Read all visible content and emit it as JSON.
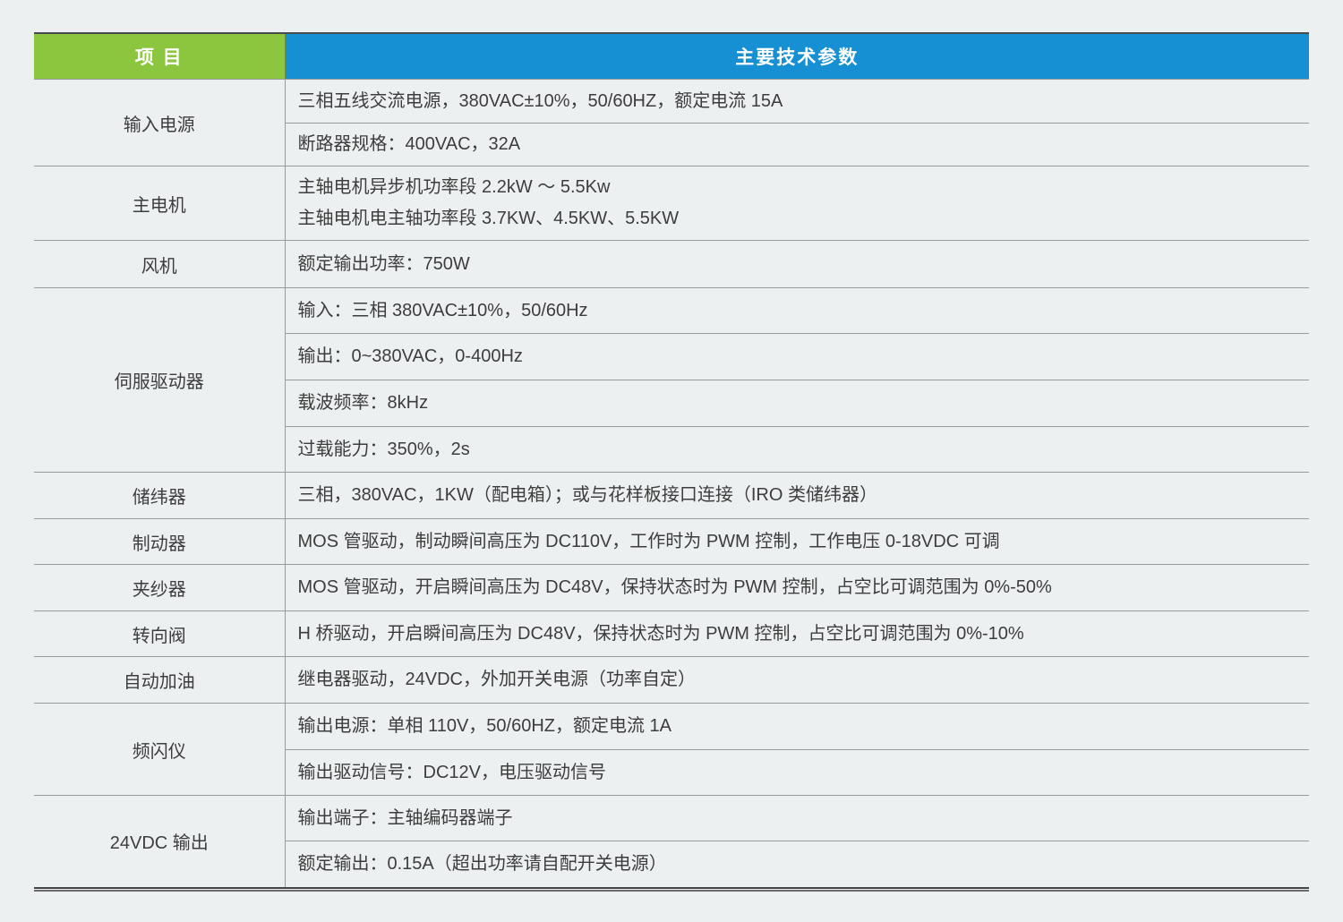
{
  "colors": {
    "item_header_green": "#8cc63e",
    "param_header_blue": "#1690d2",
    "grid_line": "#979b9d",
    "background": "#edf0f1"
  },
  "table": {
    "header": {
      "item_col": "项 目",
      "param_col": "主要技术参数"
    },
    "groups": [
      {
        "item": "输入电源",
        "specs": [
          "三相五线交流电源，380VAC±10%，50/60HZ，额定电流 15A",
          "断路器规格：400VAC，32A"
        ]
      },
      {
        "item": "主电机",
        "specs": [
          "主轴电机异步机功率段 2.2kW ～ 5.5Kw\n主轴电机电主轴功率段 3.7KW、4.5KW、5.5KW"
        ]
      },
      {
        "item": "风机",
        "specs": [
          "额定输出功率：750W"
        ]
      },
      {
        "item": "伺服驱动器",
        "specs": [
          "输入：三相 380VAC±10%，50/60Hz",
          "输出：0~380VAC，0-400Hz",
          "载波频率：8kHz",
          "过载能力：350%，2s"
        ]
      },
      {
        "item": "储纬器",
        "specs": [
          "三相，380VAC，1KW（配电箱）；或与花样板接口连接（IRO 类储纬器）"
        ]
      },
      {
        "item": "制动器",
        "specs": [
          "MOS 管驱动，制动瞬间高压为 DC110V，工作时为 PWM 控制，工作电压 0-18VDC 可调"
        ]
      },
      {
        "item": "夹纱器",
        "specs": [
          "MOS 管驱动，开启瞬间高压为 DC48V，保持状态时为 PWM 控制，占空比可调范围为 0%-50%"
        ]
      },
      {
        "item": "转向阀",
        "specs": [
          "H 桥驱动，开启瞬间高压为 DC48V，保持状态时为 PWM 控制，占空比可调范围为 0%-10%"
        ]
      },
      {
        "item": "自动加油",
        "specs": [
          "继电器驱动，24VDC，外加开关电源（功率自定）"
        ]
      },
      {
        "item": "频闪仪",
        "specs": [
          "输出电源：单相 110V，50/60HZ，额定电流 1A",
          "输出驱动信号：DC12V，电压驱动信号"
        ]
      },
      {
        "item": "24VDC 输出",
        "specs": [
          "输出端子：主轴编码器端子",
          "额定输出：0.15A（超出功率请自配开关电源）"
        ]
      }
    ]
  }
}
